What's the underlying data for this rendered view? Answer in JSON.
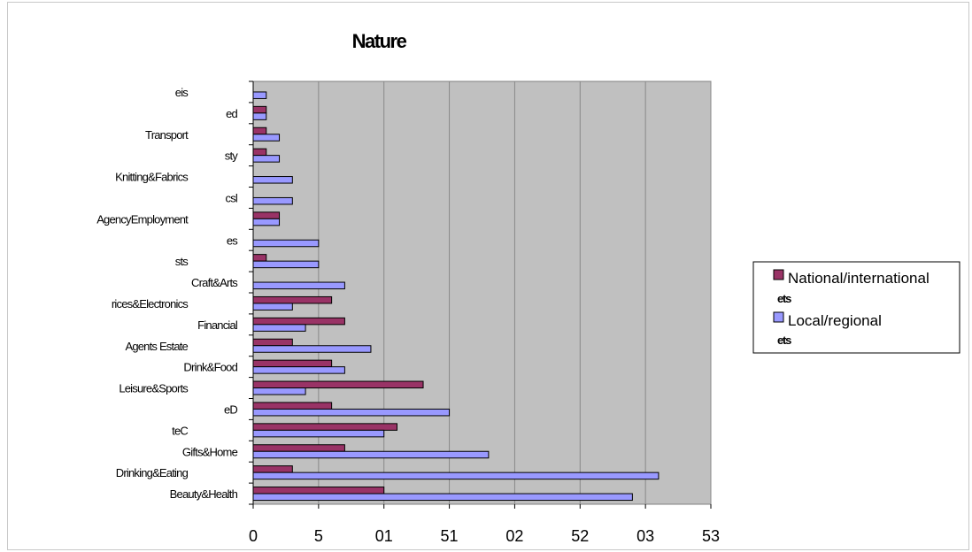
{
  "chart_data": {
    "type": "bar",
    "orientation": "horizontal",
    "title": "Nature",
    "xlim": [
      0,
      35
    ],
    "xtick_values": [
      0,
      5,
      10,
      15,
      20,
      25,
      30,
      35
    ],
    "xtick_labels": [
      "0",
      "5",
      "01",
      "51",
      "02",
      "52",
      "03",
      "53"
    ],
    "grid": true,
    "legend_position": "right",
    "categories": [
      "eis",
      "ed",
      "Transport",
      "sty",
      "Knitting&Fabrics",
      "csl",
      "AgencyEmployment",
      "es",
      "sts",
      "Craft&Arts",
      "rices&Electronics",
      "Financial",
      "Agents Estate",
      "Drink&Food",
      "Leisure&Sports",
      "eD",
      "teC",
      "Gifts&Home",
      "Drinking&Eating",
      "Beauty&Health"
    ],
    "series": [
      {
        "name": "National/international",
        "name_suffix": "ets",
        "color": "#993366",
        "values": [
          0,
          1,
          1,
          1,
          0,
          0,
          2,
          0,
          1,
          0,
          6,
          7,
          3,
          6,
          13,
          6,
          11,
          7,
          3,
          10
        ]
      },
      {
        "name": "Local/regional",
        "name_suffix": "ets",
        "color": "#9999ff",
        "values": [
          1,
          1,
          2,
          2,
          3,
          3,
          2,
          5,
          5,
          7,
          3,
          4,
          9,
          7,
          4,
          15,
          10,
          18,
          31,
          29
        ]
      }
    ]
  },
  "colors": {
    "plot_background": "#c0c0c0",
    "gridline": "#888888"
  }
}
